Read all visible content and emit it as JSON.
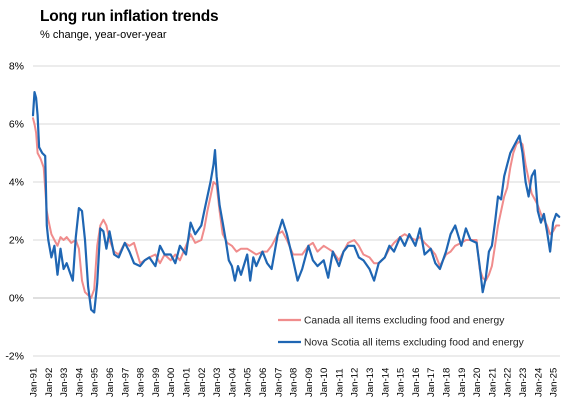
{
  "chart_data": {
    "type": "line",
    "title": "Long run inflation trends",
    "subtitle": "% change, year-over-year",
    "xlabel": "",
    "ylabel": "",
    "ylim": [
      -2,
      8
    ],
    "y_ticks": [
      -2,
      0,
      2,
      4,
      6,
      8
    ],
    "y_tick_labels": [
      "-2%",
      "0%",
      "2%",
      "4%",
      "6%",
      "8%"
    ],
    "x_tick_labels": [
      "Jan-91",
      "Jan-92",
      "Jan-93",
      "Jan-94",
      "Jan-95",
      "Jan-96",
      "Jan-97",
      "Jan-98",
      "Jan-99",
      "Jan-00",
      "Jan-01",
      "Jan-02",
      "Jan-03",
      "Jan-04",
      "Jan-05",
      "Jan-06",
      "Jan-07",
      "Jan-08",
      "Jan-09",
      "Jan-10",
      "Jan-11",
      "Jan-12",
      "Jan-13",
      "Jan-14",
      "Jan-15",
      "Jan-16",
      "Jan-17",
      "Jan-18",
      "Jan-19",
      "Jan-20",
      "Jan-21",
      "Jan-22",
      "Jan-23",
      "Jan-24",
      "Jan-25"
    ],
    "x_range": [
      "Jan-91",
      "Jun-25"
    ],
    "grid": "horizontal",
    "legend_position": "bottom-right",
    "series": [
      {
        "name": "Canada all items excluding food and energy",
        "color": "#f08c8c",
        "points": [
          [
            1991.0,
            6.2
          ],
          [
            1991.1,
            6.0
          ],
          [
            1991.2,
            5.7
          ],
          [
            1991.3,
            5.0
          ],
          [
            1991.5,
            4.8
          ],
          [
            1991.7,
            4.5
          ],
          [
            1991.9,
            3.0
          ],
          [
            1992.0,
            2.7
          ],
          [
            1992.2,
            2.2
          ],
          [
            1992.4,
            2.0
          ],
          [
            1992.6,
            1.8
          ],
          [
            1992.8,
            2.1
          ],
          [
            1993.0,
            2.0
          ],
          [
            1993.2,
            2.1
          ],
          [
            1993.5,
            1.9
          ],
          [
            1993.8,
            2.0
          ],
          [
            1994.0,
            1.7
          ],
          [
            1994.2,
            0.6
          ],
          [
            1994.4,
            0.2
          ],
          [
            1994.6,
            0.1
          ],
          [
            1994.8,
            0.0
          ],
          [
            1995.0,
            0.3
          ],
          [
            1995.2,
            1.8
          ],
          [
            1995.4,
            2.5
          ],
          [
            1995.6,
            2.7
          ],
          [
            1995.8,
            2.5
          ],
          [
            1996.0,
            2.0
          ],
          [
            1996.3,
            1.6
          ],
          [
            1996.6,
            1.5
          ],
          [
            1997.0,
            1.9
          ],
          [
            1997.3,
            1.8
          ],
          [
            1997.6,
            1.9
          ],
          [
            1998.0,
            1.2
          ],
          [
            1998.3,
            1.3
          ],
          [
            1998.6,
            1.4
          ],
          [
            1999.0,
            1.5
          ],
          [
            1999.3,
            1.2
          ],
          [
            1999.6,
            1.5
          ],
          [
            2000.0,
            1.3
          ],
          [
            2000.3,
            1.5
          ],
          [
            2000.6,
            1.3
          ],
          [
            2001.0,
            1.8
          ],
          [
            2001.3,
            2.2
          ],
          [
            2001.6,
            1.9
          ],
          [
            2002.0,
            2.0
          ],
          [
            2002.2,
            2.4
          ],
          [
            2002.4,
            3.0
          ],
          [
            2002.6,
            3.5
          ],
          [
            2002.8,
            4.0
          ],
          [
            2003.0,
            3.9
          ],
          [
            2003.2,
            3.0
          ],
          [
            2003.4,
            2.2
          ],
          [
            2003.7,
            1.9
          ],
          [
            2004.0,
            1.8
          ],
          [
            2004.3,
            1.6
          ],
          [
            2004.6,
            1.7
          ],
          [
            2005.0,
            1.7
          ],
          [
            2005.3,
            1.6
          ],
          [
            2005.6,
            1.5
          ],
          [
            2006.0,
            1.6
          ],
          [
            2006.3,
            1.6
          ],
          [
            2006.6,
            1.8
          ],
          [
            2007.0,
            2.2
          ],
          [
            2007.3,
            2.3
          ],
          [
            2007.6,
            2.0
          ],
          [
            2008.0,
            1.5
          ],
          [
            2008.3,
            1.5
          ],
          [
            2008.6,
            1.5
          ],
          [
            2009.0,
            1.8
          ],
          [
            2009.3,
            1.9
          ],
          [
            2009.6,
            1.6
          ],
          [
            2010.0,
            1.8
          ],
          [
            2010.3,
            1.7
          ],
          [
            2010.6,
            1.6
          ],
          [
            2011.0,
            1.3
          ],
          [
            2011.3,
            1.6
          ],
          [
            2011.6,
            1.9
          ],
          [
            2012.0,
            2.0
          ],
          [
            2012.3,
            1.8
          ],
          [
            2012.6,
            1.5
          ],
          [
            2013.0,
            1.4
          ],
          [
            2013.3,
            1.2
          ],
          [
            2013.6,
            1.2
          ],
          [
            2014.0,
            1.4
          ],
          [
            2014.3,
            1.7
          ],
          [
            2014.6,
            1.9
          ],
          [
            2015.0,
            2.1
          ],
          [
            2015.3,
            2.2
          ],
          [
            2015.6,
            2.1
          ],
          [
            2016.0,
            2.0
          ],
          [
            2016.3,
            2.1
          ],
          [
            2016.6,
            1.9
          ],
          [
            2017.0,
            1.7
          ],
          [
            2017.3,
            1.5
          ],
          [
            2017.6,
            1.1
          ],
          [
            2018.0,
            1.5
          ],
          [
            2018.3,
            1.6
          ],
          [
            2018.6,
            1.8
          ],
          [
            2019.0,
            1.9
          ],
          [
            2019.3,
            2.0
          ],
          [
            2019.6,
            2.0
          ],
          [
            2020.0,
            2.0
          ],
          [
            2020.2,
            1.0
          ],
          [
            2020.4,
            0.7
          ],
          [
            2020.6,
            0.6
          ],
          [
            2020.8,
            0.8
          ],
          [
            2021.0,
            1.1
          ],
          [
            2021.2,
            1.8
          ],
          [
            2021.4,
            2.5
          ],
          [
            2021.6,
            3.0
          ],
          [
            2021.8,
            3.5
          ],
          [
            2022.0,
            3.8
          ],
          [
            2022.2,
            4.5
          ],
          [
            2022.4,
            5.0
          ],
          [
            2022.6,
            5.3
          ],
          [
            2022.8,
            5.4
          ],
          [
            2023.0,
            5.3
          ],
          [
            2023.2,
            4.6
          ],
          [
            2023.4,
            4.1
          ],
          [
            2023.6,
            3.6
          ],
          [
            2023.8,
            3.4
          ],
          [
            2024.0,
            3.2
          ],
          [
            2024.2,
            2.9
          ],
          [
            2024.4,
            2.7
          ],
          [
            2024.6,
            2.5
          ],
          [
            2024.8,
            2.2
          ],
          [
            2025.0,
            2.3
          ],
          [
            2025.2,
            2.5
          ],
          [
            2025.4,
            2.5
          ]
        ]
      },
      {
        "name": "Nova Scotia all items excluding food and energy",
        "color": "#1f66b3",
        "points": [
          [
            1991.0,
            6.3
          ],
          [
            1991.1,
            7.1
          ],
          [
            1991.2,
            6.9
          ],
          [
            1991.3,
            6.3
          ],
          [
            1991.4,
            5.2
          ],
          [
            1991.6,
            5.0
          ],
          [
            1991.8,
            4.9
          ],
          [
            1991.9,
            2.5
          ],
          [
            1992.0,
            2.0
          ],
          [
            1992.2,
            1.4
          ],
          [
            1992.4,
            1.8
          ],
          [
            1992.6,
            0.8
          ],
          [
            1992.8,
            1.7
          ],
          [
            1993.0,
            1.0
          ],
          [
            1993.2,
            1.2
          ],
          [
            1993.4,
            0.9
          ],
          [
            1993.6,
            0.6
          ],
          [
            1993.8,
            2.1
          ],
          [
            1994.0,
            3.1
          ],
          [
            1994.2,
            3.0
          ],
          [
            1994.4,
            2.0
          ],
          [
            1994.6,
            0.4
          ],
          [
            1994.8,
            -0.4
          ],
          [
            1995.0,
            -0.5
          ],
          [
            1995.2,
            0.5
          ],
          [
            1995.4,
            2.4
          ],
          [
            1995.6,
            2.3
          ],
          [
            1995.8,
            1.7
          ],
          [
            1996.0,
            2.3
          ],
          [
            1996.3,
            1.5
          ],
          [
            1996.6,
            1.4
          ],
          [
            1997.0,
            1.9
          ],
          [
            1997.3,
            1.6
          ],
          [
            1997.6,
            1.2
          ],
          [
            1998.0,
            1.1
          ],
          [
            1998.3,
            1.3
          ],
          [
            1998.6,
            1.4
          ],
          [
            1999.0,
            1.1
          ],
          [
            1999.3,
            1.8
          ],
          [
            1999.6,
            1.5
          ],
          [
            2000.0,
            1.5
          ],
          [
            2000.3,
            1.2
          ],
          [
            2000.6,
            1.8
          ],
          [
            2001.0,
            1.5
          ],
          [
            2001.3,
            2.6
          ],
          [
            2001.6,
            2.2
          ],
          [
            2002.0,
            2.5
          ],
          [
            2002.2,
            3.0
          ],
          [
            2002.4,
            3.5
          ],
          [
            2002.6,
            4.0
          ],
          [
            2002.8,
            4.6
          ],
          [
            2002.9,
            5.1
          ],
          [
            2003.0,
            4.2
          ],
          [
            2003.2,
            3.2
          ],
          [
            2003.4,
            2.6
          ],
          [
            2003.6,
            2.0
          ],
          [
            2003.8,
            1.3
          ],
          [
            2004.0,
            1.1
          ],
          [
            2004.2,
            0.6
          ],
          [
            2004.4,
            1.1
          ],
          [
            2004.6,
            0.8
          ],
          [
            2005.0,
            1.5
          ],
          [
            2005.2,
            0.6
          ],
          [
            2005.4,
            1.4
          ],
          [
            2005.6,
            1.1
          ],
          [
            2006.0,
            1.6
          ],
          [
            2006.3,
            1.2
          ],
          [
            2006.6,
            1.0
          ],
          [
            2007.0,
            2.2
          ],
          [
            2007.3,
            2.7
          ],
          [
            2007.6,
            2.2
          ],
          [
            2008.0,
            1.3
          ],
          [
            2008.3,
            0.6
          ],
          [
            2008.6,
            1.0
          ],
          [
            2009.0,
            1.8
          ],
          [
            2009.3,
            1.3
          ],
          [
            2009.6,
            1.1
          ],
          [
            2010.0,
            1.3
          ],
          [
            2010.3,
            0.7
          ],
          [
            2010.6,
            1.6
          ],
          [
            2011.0,
            1.1
          ],
          [
            2011.3,
            1.6
          ],
          [
            2011.6,
            1.8
          ],
          [
            2012.0,
            1.8
          ],
          [
            2012.3,
            1.4
          ],
          [
            2012.6,
            1.3
          ],
          [
            2013.0,
            1.0
          ],
          [
            2013.3,
            0.6
          ],
          [
            2013.6,
            1.2
          ],
          [
            2014.0,
            1.4
          ],
          [
            2014.3,
            1.8
          ],
          [
            2014.6,
            1.6
          ],
          [
            2015.0,
            2.1
          ],
          [
            2015.3,
            1.8
          ],
          [
            2015.6,
            2.2
          ],
          [
            2016.0,
            1.8
          ],
          [
            2016.3,
            2.4
          ],
          [
            2016.6,
            1.5
          ],
          [
            2017.0,
            1.7
          ],
          [
            2017.3,
            1.2
          ],
          [
            2017.6,
            1.0
          ],
          [
            2018.0,
            1.6
          ],
          [
            2018.3,
            2.2
          ],
          [
            2018.6,
            2.5
          ],
          [
            2019.0,
            1.8
          ],
          [
            2019.3,
            2.4
          ],
          [
            2019.6,
            2.0
          ],
          [
            2020.0,
            1.9
          ],
          [
            2020.2,
            1.1
          ],
          [
            2020.4,
            0.2
          ],
          [
            2020.6,
            0.7
          ],
          [
            2020.8,
            1.6
          ],
          [
            2021.0,
            1.8
          ],
          [
            2021.2,
            2.6
          ],
          [
            2021.4,
            3.5
          ],
          [
            2021.6,
            3.4
          ],
          [
            2021.8,
            4.2
          ],
          [
            2022.0,
            4.6
          ],
          [
            2022.2,
            5.0
          ],
          [
            2022.4,
            5.2
          ],
          [
            2022.6,
            5.4
          ],
          [
            2022.8,
            5.6
          ],
          [
            2023.0,
            5.0
          ],
          [
            2023.2,
            4.0
          ],
          [
            2023.4,
            3.5
          ],
          [
            2023.6,
            4.2
          ],
          [
            2023.8,
            4.4
          ],
          [
            2024.0,
            3.0
          ],
          [
            2024.2,
            2.6
          ],
          [
            2024.4,
            2.9
          ],
          [
            2024.6,
            2.3
          ],
          [
            2024.8,
            1.6
          ],
          [
            2025.0,
            2.6
          ],
          [
            2025.2,
            2.9
          ],
          [
            2025.4,
            2.8
          ]
        ]
      }
    ]
  }
}
